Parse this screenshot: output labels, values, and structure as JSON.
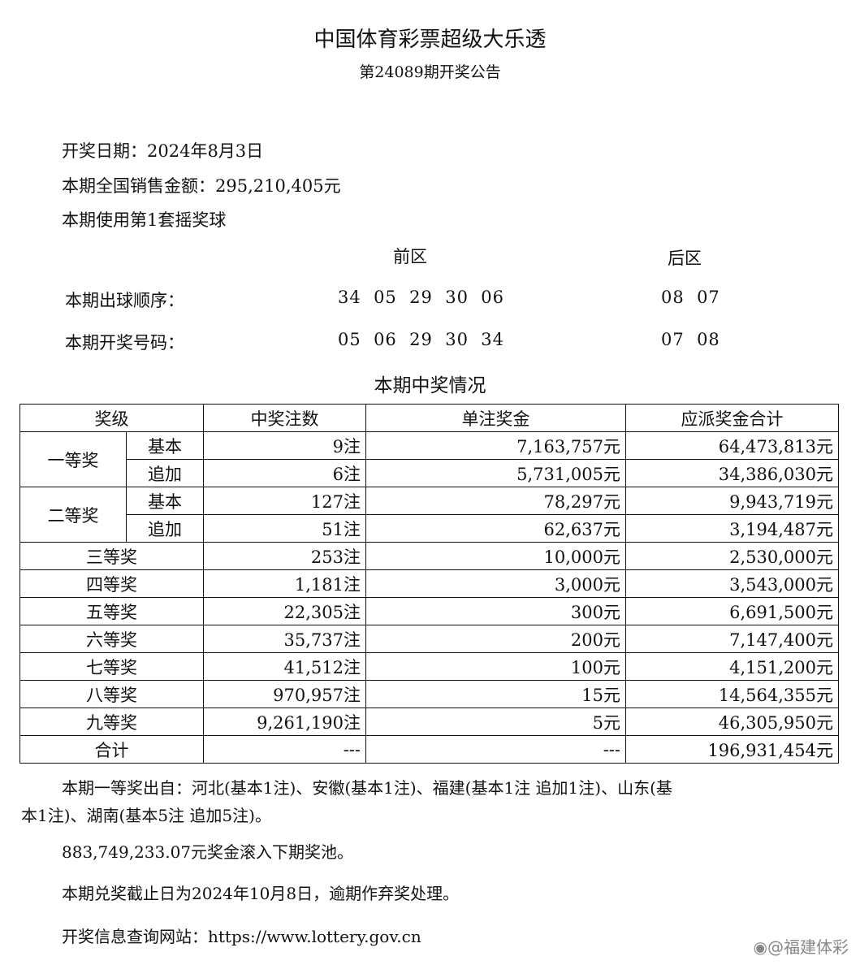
{
  "title": "中国体育彩票超级大乐透",
  "subtitle": "第24089期开奖公告",
  "draw_date": "开奖日期：2024年8月3日",
  "sales": "本期全国销售金额：295,210,405元",
  "ball_set": "本期使用第1套摇奖球",
  "front_label": "前区",
  "back_label": "后区",
  "order_label": "本期出球顺序：",
  "order_front": "34  05  29  30  06",
  "order_back": "08  07",
  "result_label": "本期开奖号码：",
  "result_front": "05  06  29  30  34",
  "result_back": "07  08",
  "prize_heading": "本期中奖情况",
  "table": {
    "headers": [
      "奖级",
      "中奖注数",
      "单注奖金",
      "应派奖金合计"
    ],
    "first": {
      "label": "一等奖",
      "rows": [
        [
          "基本",
          "9注",
          "7,163,757元",
          "64,473,813元"
        ],
        [
          "追加",
          "6注",
          "5,731,005元",
          "34,386,030元"
        ]
      ]
    },
    "second": {
      "label": "二等奖",
      "rows": [
        [
          "基本",
          "127注",
          "78,297元",
          "9,943,719元"
        ],
        [
          "追加",
          "51注",
          "62,637元",
          "3,194,487元"
        ]
      ]
    },
    "rows": [
      [
        "三等奖",
        "253注",
        "10,000元",
        "2,530,000元"
      ],
      [
        "四等奖",
        "1,181注",
        "3,000元",
        "3,543,000元"
      ],
      [
        "五等奖",
        "22,305注",
        "300元",
        "6,691,500元"
      ],
      [
        "六等奖",
        "35,737注",
        "200元",
        "7,147,400元"
      ],
      [
        "七等奖",
        "41,512注",
        "100元",
        "4,151,200元"
      ],
      [
        "八等奖",
        "970,957注",
        "15元",
        "14,564,355元"
      ],
      [
        "九等奖",
        "9,261,190注",
        "5元",
        "46,305,950元"
      ],
      [
        "合计",
        "---",
        "---",
        "196,931,454元"
      ]
    ]
  },
  "first_prize_origin_1": "本期一等奖出自：河北(基本1注)、安徽(基本1注)、福建(基本1注 追加1注)、山东(基",
  "first_prize_origin_2": "本1注)、湖南(基本5注 追加5注)。",
  "rollover": "883,749,233.07元奖金滚入下期奖池。",
  "deadline": "本期兑奖截止日为2024年10月8日，逾期作弃奖处理。",
  "website": "开奖信息查询网站：https://www.lottery.gov.cn",
  "watermark": "@福建体彩"
}
